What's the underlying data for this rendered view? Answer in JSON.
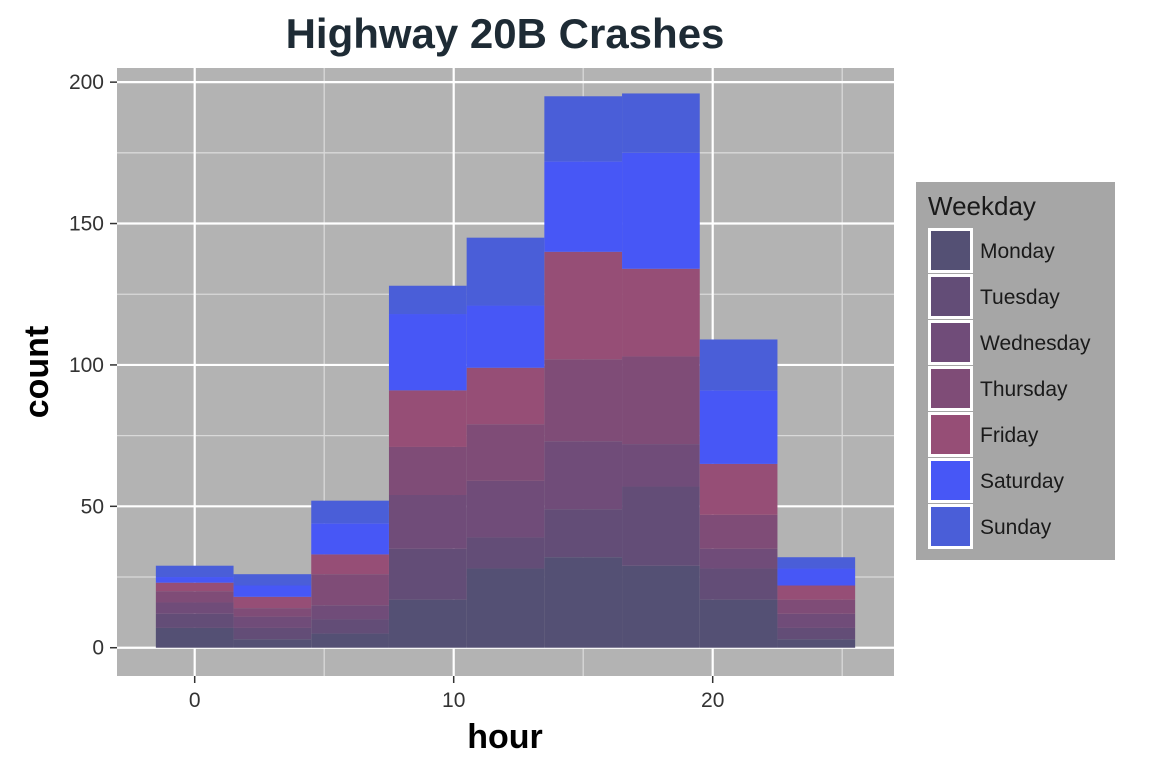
{
  "chart_data": {
    "type": "bar",
    "stacked": true,
    "title": "Highway 20B Crashes",
    "xlabel": "hour",
    "ylabel": "count",
    "x_ticks": [
      0,
      10,
      20
    ],
    "y_ticks": [
      0,
      50,
      100,
      150,
      200
    ],
    "xlim": [
      -3,
      27
    ],
    "ylim": [
      -10,
      205
    ],
    "bin_starts": [
      -1.5,
      1.5,
      4.5,
      7.5,
      10.5,
      13.5,
      16.5,
      19.5,
      22.5
    ],
    "bin_width": 3,
    "grid": true,
    "legend": {
      "title": "Weekday",
      "position": "right"
    },
    "series": [
      {
        "name": "Monday",
        "color": "#545074",
        "values": [
          7,
          3,
          5,
          17,
          28,
          32,
          29,
          17,
          3
        ]
      },
      {
        "name": "Tuesday",
        "color": "#634d77",
        "values": [
          5,
          4,
          5,
          18,
          11,
          17,
          28,
          11,
          4
        ]
      },
      {
        "name": "Wednesday",
        "color": "#704c79",
        "values": [
          4,
          4,
          5,
          19,
          20,
          24,
          15,
          7,
          5
        ]
      },
      {
        "name": "Thursday",
        "color": "#7f4c77",
        "values": [
          4,
          3,
          11,
          17,
          20,
          29,
          31,
          12,
          5
        ]
      },
      {
        "name": "Friday",
        "color": "#964e76",
        "values": [
          3,
          4,
          7,
          20,
          20,
          38,
          31,
          18,
          5
        ]
      },
      {
        "name": "Saturday",
        "color": "#4757f6",
        "values": [
          2,
          4,
          11,
          27,
          22,
          32,
          41,
          26,
          6
        ]
      },
      {
        "name": "Sunday",
        "color": "#4a5ed8",
        "values": [
          4,
          4,
          8,
          10,
          24,
          23,
          21,
          18,
          4
        ]
      }
    ]
  }
}
